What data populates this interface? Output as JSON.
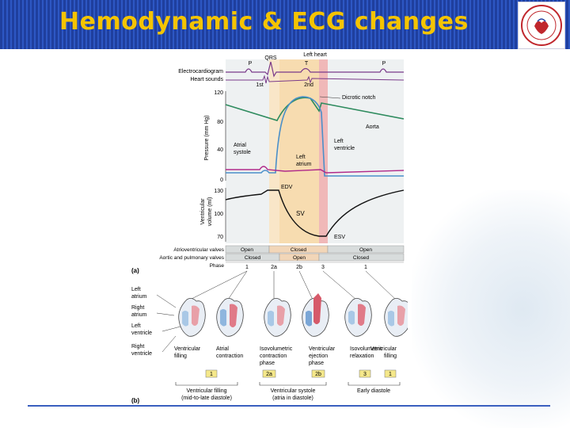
{
  "slide": {
    "title": "Hemodynamic & ECG changes"
  },
  "figure": {
    "top_label": "Left heart",
    "ecg": {
      "label_ecg": "Electrocardiogram",
      "label_heart_sounds": "Heart sounds",
      "wave_p1": "P",
      "wave_qrs": "QRS",
      "wave_t": "T",
      "wave_p2": "P",
      "sound_1": "1st",
      "sound_2": "2nd"
    },
    "pressure": {
      "ylabel": "Pressure (mm Hg)",
      "ticks": [
        "120",
        "80",
        "40",
        "0"
      ],
      "annot_dicrotic": "Dicrotic notch",
      "annot_aorta": "Aorta",
      "annot_lv_1": "Left",
      "annot_lv_2": "ventricle",
      "annot_atrial_1": "Atrial",
      "annot_atrial_2": "systole",
      "annot_la_1": "Left",
      "annot_la_2": "atrium"
    },
    "volume": {
      "ylabel_1": "Ventricular",
      "ylabel_2": "volume (ml)",
      "ticks": [
        "130",
        "100",
        "70"
      ],
      "annot_edv": "EDV",
      "annot_sv": "SV",
      "annot_esv": "ESV"
    },
    "valves": {
      "av_label": "Atrioventricular valves",
      "ap_label": "Aortic and pulmonary valves",
      "phase_label": "Phase",
      "av_states": [
        "Open",
        "Closed",
        "Open"
      ],
      "ap_states": [
        "Closed",
        "Open",
        "Closed"
      ],
      "phases": [
        "1",
        "2a",
        "2b",
        "3",
        "1"
      ]
    },
    "panel_a": "(a)",
    "panel_b": "(b)",
    "heart_labels": {
      "left_atrium_1": "Left",
      "left_atrium_2": "atrium",
      "right_atrium_1": "Right",
      "right_atrium_2": "atrium",
      "left_ventricle_1": "Left",
      "left_ventricle_2": "ventricle",
      "right_ventricle_1": "Right",
      "right_ventricle_2": "ventricle"
    },
    "stages": [
      {
        "l1": "Ventricular",
        "l2": "filling",
        "l3": "",
        "phase": "1"
      },
      {
        "l1": "Atrial",
        "l2": "contraction",
        "l3": "",
        "phase": "1"
      },
      {
        "l1": "Isovolumetric",
        "l2": "contraction",
        "l3": "phase",
        "phase": "2a"
      },
      {
        "l1": "Ventricular",
        "l2": "ejection",
        "l3": "phase",
        "phase": "2b"
      },
      {
        "l1": "Isovolumetric",
        "l2": "relaxation",
        "l3": "",
        "phase": "3"
      },
      {
        "l1": "Ventricular",
        "l2": "filling",
        "l3": "",
        "phase": "1"
      }
    ],
    "groups": [
      {
        "l1": "Ventricular filling",
        "l2": "(mid-to-late diastole)"
      },
      {
        "l1": "Ventricular systole",
        "l2": "(atria in diastole)"
      },
      {
        "l1": "Early diastole",
        "l2": ""
      }
    ]
  },
  "colors": {
    "header": "#2d57c4",
    "title": "#f5c400",
    "aorta": "#2e8b5e",
    "ventricle": "#4a8fc9",
    "atrium": "#b02a8a",
    "systole_band": "#f7dcb0",
    "isovol_band": "#f0b8b8"
  }
}
